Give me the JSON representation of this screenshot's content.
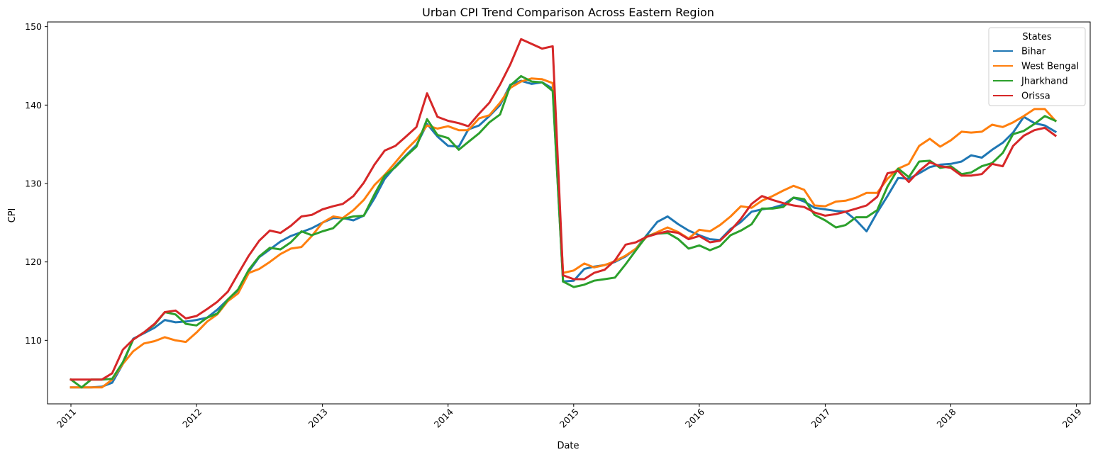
{
  "chart_data": {
    "type": "line",
    "title": "Urban CPI Trend Comparison Across Eastern Region",
    "xlabel": "Date",
    "ylabel": "CPI",
    "xlim": [
      "2010-10-25",
      "2019-02-10"
    ],
    "ylim": [
      101.9,
      150.6
    ],
    "x_ticks": [
      "2011",
      "2012",
      "2013",
      "2014",
      "2015",
      "2016",
      "2017",
      "2018",
      "2019"
    ],
    "y_ticks": [
      110,
      120,
      130,
      140,
      150
    ],
    "grid": false,
    "legend": {
      "title": "States",
      "position": "top-right"
    },
    "x": [
      "2011-01",
      "2011-02",
      "2011-03",
      "2011-04",
      "2011-05",
      "2011-06",
      "2011-07",
      "2011-08",
      "2011-09",
      "2011-10",
      "2011-11",
      "2011-12",
      "2012-01",
      "2012-02",
      "2012-03",
      "2012-04",
      "2012-05",
      "2012-06",
      "2012-07",
      "2012-08",
      "2012-09",
      "2012-10",
      "2012-11",
      "2012-12",
      "2013-01",
      "2013-02",
      "2013-03",
      "2013-04",
      "2013-05",
      "2013-06",
      "2013-07",
      "2013-08",
      "2013-09",
      "2013-10",
      "2013-11",
      "2013-12",
      "2014-01",
      "2014-02",
      "2014-03",
      "2014-04",
      "2014-05",
      "2014-06",
      "2014-07",
      "2014-08",
      "2014-09",
      "2014-10",
      "2014-11",
      "2014-12",
      "2015-01",
      "2015-02",
      "2015-03",
      "2015-04",
      "2015-05",
      "2015-06",
      "2015-07",
      "2015-08",
      "2015-09",
      "2015-10",
      "2015-11",
      "2015-12",
      "2016-01",
      "2016-02",
      "2016-03",
      "2016-04",
      "2016-05",
      "2016-06",
      "2016-07",
      "2016-08",
      "2016-09",
      "2016-10",
      "2016-11",
      "2016-12",
      "2017-01",
      "2017-02",
      "2017-03",
      "2017-04",
      "2017-05",
      "2017-06",
      "2017-07",
      "2017-08",
      "2017-09",
      "2017-10",
      "2017-11",
      "2017-12",
      "2018-01",
      "2018-02",
      "2018-03",
      "2018-04",
      "2018-05",
      "2018-06",
      "2018-07",
      "2018-08",
      "2018-09",
      "2018-10",
      "2018-11"
    ],
    "series": [
      {
        "name": "Bihar",
        "color": "#1f77b4",
        "values": [
          104.0,
          104.0,
          104.0,
          104.1,
          104.6,
          107.0,
          110.2,
          110.9,
          111.6,
          112.6,
          112.3,
          112.4,
          112.6,
          112.9,
          113.9,
          115.2,
          116.4,
          118.8,
          120.6,
          121.6,
          122.6,
          123.3,
          123.8,
          124.3,
          125.0,
          125.6,
          125.6,
          125.3,
          125.9,
          128.1,
          130.6,
          132.2,
          133.6,
          134.9,
          137.6,
          136.0,
          134.8,
          134.7,
          136.9,
          137.4,
          138.6,
          140.0,
          142.6,
          143.1,
          142.7,
          142.9,
          142.1,
          117.5,
          117.6,
          119.1,
          119.4,
          119.6,
          120.0,
          120.7,
          121.7,
          123.4,
          125.1,
          125.8,
          124.8,
          124.0,
          123.4,
          122.9,
          122.8,
          124.2,
          125.1,
          126.4,
          126.7,
          126.9,
          127.3,
          128.2,
          127.7,
          126.9,
          126.7,
          126.5,
          126.4,
          125.3,
          123.9,
          126.3,
          128.4,
          130.7,
          130.6,
          131.3,
          132.1,
          132.4,
          132.5,
          132.8,
          133.6,
          133.3,
          134.3,
          135.2,
          136.5,
          138.5,
          137.7,
          137.4,
          136.6
        ]
      },
      {
        "name": "West Bengal",
        "color": "#ff7f0e",
        "values": [
          104.0,
          104.0,
          104.0,
          104.0,
          105.0,
          107.0,
          108.6,
          109.6,
          109.9,
          110.4,
          110.0,
          109.8,
          111.0,
          112.4,
          113.3,
          115.0,
          116.0,
          118.6,
          119.1,
          120.0,
          121.0,
          121.7,
          121.9,
          123.3,
          125.0,
          125.8,
          125.6,
          126.6,
          127.9,
          129.8,
          131.1,
          132.7,
          134.3,
          135.6,
          137.4,
          137.0,
          137.3,
          136.8,
          136.8,
          138.3,
          138.7,
          140.3,
          142.2,
          143.0,
          143.4,
          143.3,
          142.8,
          118.6,
          118.9,
          119.8,
          119.3,
          119.6,
          120.1,
          120.8,
          121.7,
          123.2,
          123.8,
          124.4,
          123.8,
          123.0,
          124.1,
          123.9,
          124.7,
          125.8,
          127.1,
          126.9,
          127.8,
          128.4,
          129.1,
          129.7,
          129.2,
          127.2,
          127.1,
          127.7,
          127.8,
          128.2,
          128.8,
          128.8,
          130.6,
          131.9,
          132.5,
          134.8,
          135.7,
          134.7,
          135.5,
          136.6,
          136.5,
          136.6,
          137.5,
          137.2,
          137.8,
          138.6,
          139.5,
          139.5,
          138.0
        ]
      },
      {
        "name": "Jharkhand",
        "color": "#2ca02c",
        "values": [
          105.0,
          104.0,
          105.0,
          105.0,
          105.1,
          107.2,
          110.1,
          111.0,
          112.0,
          113.6,
          113.3,
          112.1,
          111.9,
          112.9,
          113.4,
          115.2,
          116.5,
          119.0,
          120.7,
          121.8,
          121.6,
          122.5,
          123.9,
          123.4,
          123.9,
          124.3,
          125.5,
          125.8,
          125.9,
          128.6,
          131.0,
          132.1,
          133.5,
          134.7,
          138.2,
          136.2,
          135.8,
          134.3,
          135.3,
          136.4,
          137.8,
          138.8,
          142.5,
          143.7,
          143.0,
          142.9,
          141.8,
          117.5,
          116.8,
          117.1,
          117.6,
          117.8,
          118.0,
          119.7,
          121.5,
          123.3,
          123.6,
          123.7,
          122.9,
          121.7,
          122.1,
          121.5,
          122.0,
          123.4,
          124.0,
          124.8,
          126.8,
          126.8,
          127.0,
          128.2,
          128.0,
          126.0,
          125.3,
          124.4,
          124.7,
          125.7,
          125.7,
          126.6,
          129.6,
          131.9,
          130.8,
          132.8,
          132.9,
          132.0,
          132.2,
          131.2,
          131.4,
          132.2,
          132.6,
          133.9,
          136.3,
          136.7,
          137.6,
          138.6,
          138.0
        ]
      },
      {
        "name": "Orissa",
        "color": "#d62728",
        "values": [
          105.0,
          105.0,
          105.0,
          105.0,
          105.8,
          108.8,
          110.1,
          111.0,
          112.1,
          113.6,
          113.8,
          112.8,
          113.1,
          114.0,
          114.9,
          116.2,
          118.5,
          120.8,
          122.7,
          124.0,
          123.7,
          124.6,
          125.8,
          126.0,
          126.7,
          127.1,
          127.4,
          128.4,
          130.1,
          132.4,
          134.2,
          134.8,
          136.0,
          137.2,
          141.5,
          138.5,
          138.0,
          137.7,
          137.3,
          138.9,
          140.3,
          142.6,
          145.2,
          148.4,
          147.8,
          147.2,
          147.5,
          118.3,
          117.8,
          117.8,
          118.6,
          119.0,
          120.2,
          122.2,
          122.5,
          123.2,
          123.6,
          123.9,
          123.7,
          122.9,
          123.3,
          122.5,
          122.7,
          124.0,
          125.5,
          127.4,
          128.4,
          127.9,
          127.5,
          127.2,
          127.0,
          126.3,
          125.9,
          126.1,
          126.4,
          126.8,
          127.2,
          128.3,
          131.3,
          131.6,
          130.2,
          131.6,
          132.7,
          132.2,
          132.0,
          131.0,
          131.0,
          131.2,
          132.5,
          132.2,
          134.8,
          136.1,
          136.8,
          137.1,
          136.1
        ]
      }
    ]
  }
}
